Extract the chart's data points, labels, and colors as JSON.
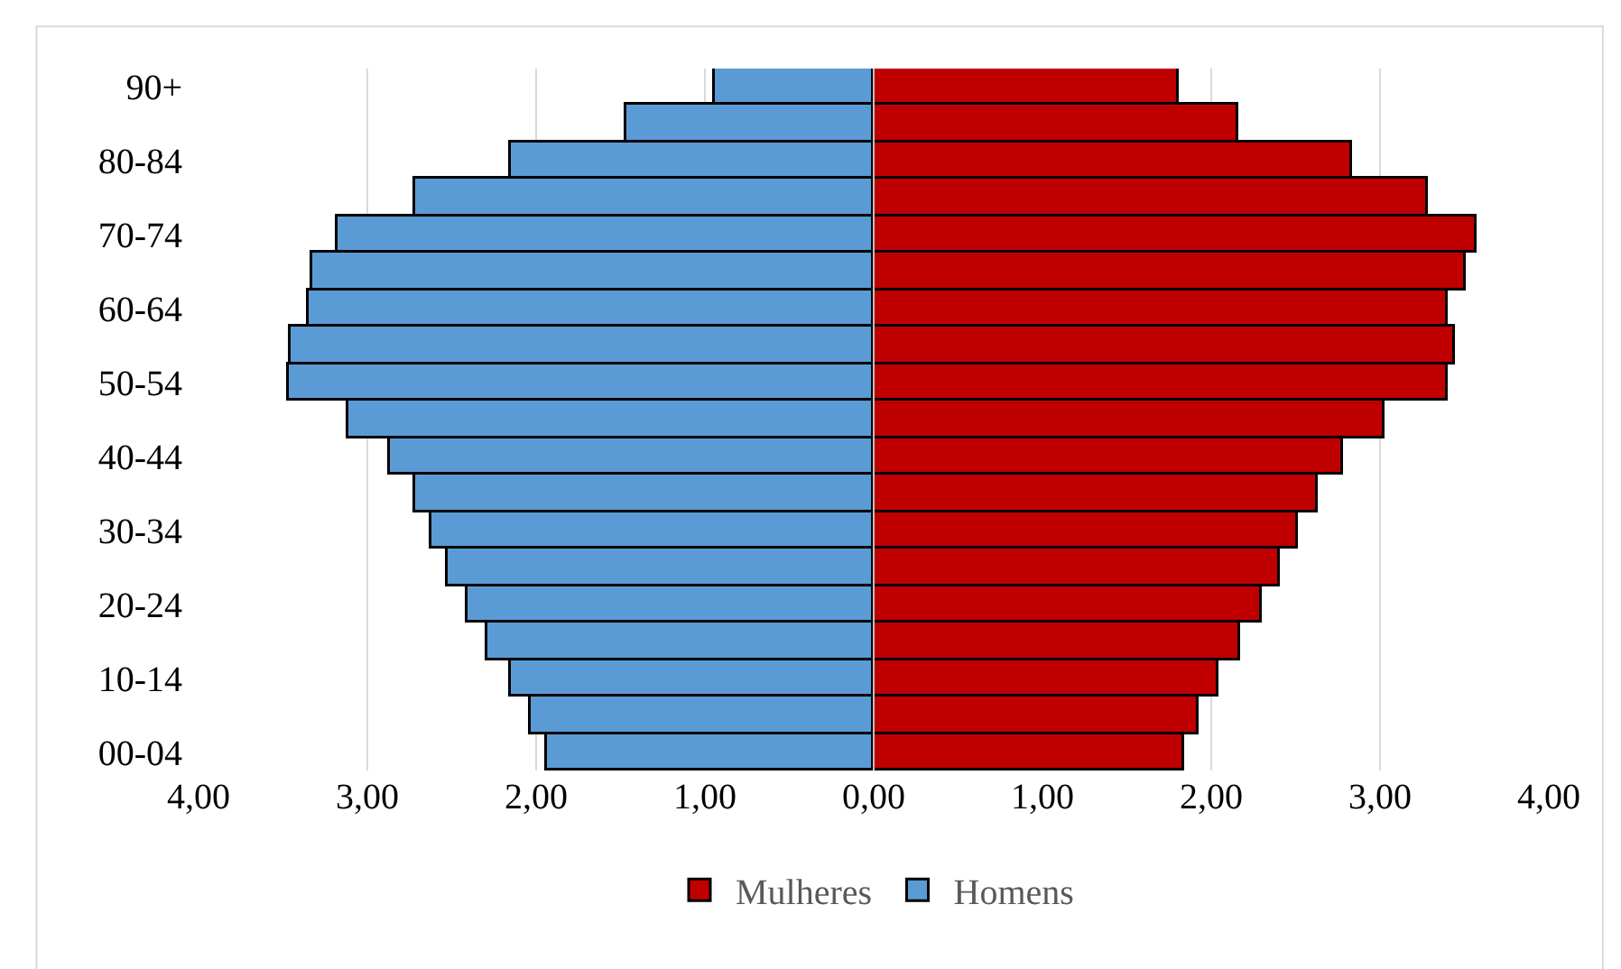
{
  "chart_data": {
    "type": "bar",
    "orientation": "horizontal",
    "stacked": true,
    "categories": [
      "90+",
      null,
      "80-84",
      null,
      "70-74",
      null,
      "60-64",
      null,
      "50-54",
      null,
      "40-44",
      null,
      "30-34",
      null,
      "20-24",
      null,
      "10-14",
      null,
      "00-04"
    ],
    "series": [
      {
        "name": "Mulheres",
        "color": "#c00000",
        "values": [
          1.81,
          2.16,
          2.83,
          3.28,
          3.57,
          3.51,
          3.4,
          3.44,
          3.4,
          3.03,
          2.78,
          2.63,
          2.51,
          2.41,
          2.3,
          2.17,
          2.04,
          1.92,
          1.84
        ]
      },
      {
        "name": "Homens",
        "color": "#5b9bd5",
        "values": [
          -0.94,
          -1.47,
          -2.15,
          -2.72,
          -3.18,
          -3.33,
          -3.35,
          -3.45,
          -3.47,
          -3.11,
          -2.87,
          -2.72,
          -2.62,
          -2.52,
          -2.41,
          -2.29,
          -2.15,
          -2.03,
          -1.94
        ]
      }
    ],
    "xlim": [
      -4,
      4
    ],
    "xticks": [
      {
        "value": -4,
        "label": "4,00"
      },
      {
        "value": -3,
        "label": "3,00"
      },
      {
        "value": -2,
        "label": "2,00"
      },
      {
        "value": -1,
        "label": "1,00"
      },
      {
        "value": 0,
        "label": "0,00"
      },
      {
        "value": 1,
        "label": "1,00"
      },
      {
        "value": 2,
        "label": "2,00"
      },
      {
        "value": 3,
        "label": "3,00"
      },
      {
        "value": 4,
        "label": "4,00"
      }
    ],
    "grid": "x",
    "legend": "bottom"
  }
}
